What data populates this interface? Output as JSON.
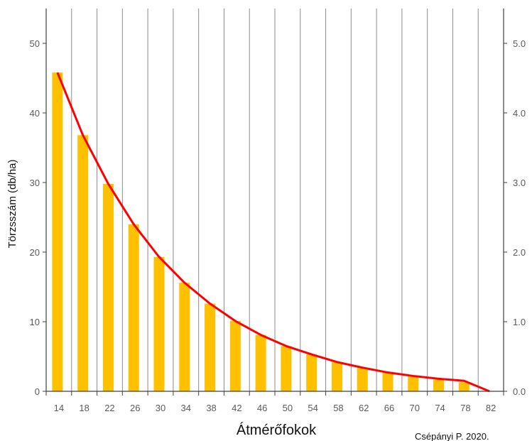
{
  "chart_data": {
    "type": "bar",
    "title": "",
    "xlabel": "Átmérőfokok",
    "ylabel": "Törzsszám (db/ha)",
    "y2label": "",
    "categories": [
      "14",
      "18",
      "22",
      "26",
      "30",
      "34",
      "38",
      "42",
      "46",
      "50",
      "54",
      "58",
      "62",
      "66",
      "70",
      "74",
      "78",
      "82"
    ],
    "series": [
      {
        "type": "bar",
        "axis": "left",
        "color": "#FFC000",
        "values": [
          45.8,
          36.8,
          29.8,
          24.0,
          19.3,
          15.6,
          12.6,
          10.1,
          8.1,
          6.5,
          5.3,
          4.2,
          3.4,
          2.8,
          2.2,
          1.7,
          1.3,
          0
        ]
      },
      {
        "type": "line",
        "axis": "left",
        "color": "#FF0000",
        "values": [
          45.8,
          36.8,
          29.8,
          24.0,
          19.3,
          15.6,
          12.6,
          10.1,
          8.1,
          6.5,
          5.3,
          4.2,
          3.4,
          2.7,
          2.2,
          1.8,
          1.5,
          0
        ]
      }
    ],
    "ylim": [
      0,
      55
    ],
    "yticks": [
      0,
      10,
      20,
      30,
      40,
      50
    ],
    "y2lim": [
      0,
      5.5
    ],
    "y2ticks": [
      "0.0",
      "1.0",
      "2.0",
      "3.0",
      "4.0",
      "5.0"
    ],
    "grid": "vertical",
    "legend": "none"
  },
  "credit": "Csépányi P. 2020."
}
